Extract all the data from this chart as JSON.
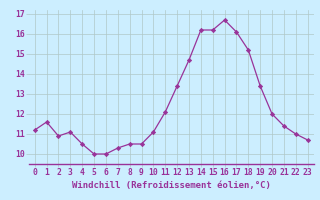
{
  "x": [
    0,
    1,
    2,
    3,
    4,
    5,
    6,
    7,
    8,
    9,
    10,
    11,
    12,
    13,
    14,
    15,
    16,
    17,
    18,
    19,
    20,
    21,
    22,
    23
  ],
  "y": [
    11.2,
    11.6,
    10.9,
    11.1,
    10.5,
    10.0,
    10.0,
    10.3,
    10.5,
    10.5,
    11.1,
    12.1,
    13.4,
    14.7,
    16.2,
    16.2,
    16.7,
    16.1,
    15.2,
    13.4,
    12.0,
    11.4,
    11.0,
    10.7
  ],
  "line_color": "#993399",
  "marker": "D",
  "marker_size": 2.2,
  "bg_color": "#cceeff",
  "grid_color": "#b0c8c8",
  "xlabel": "Windchill (Refroidissement éolien,°C)",
  "xlabel_fontsize": 6.5,
  "tick_fontsize": 5.8,
  "ylim": [
    9.5,
    17.2
  ],
  "yticks": [
    10,
    11,
    12,
    13,
    14,
    15,
    16,
    17
  ],
  "xticks": [
    0,
    1,
    2,
    3,
    4,
    5,
    6,
    7,
    8,
    9,
    10,
    11,
    12,
    13,
    14,
    15,
    16,
    17,
    18,
    19,
    20,
    21,
    22,
    23
  ]
}
